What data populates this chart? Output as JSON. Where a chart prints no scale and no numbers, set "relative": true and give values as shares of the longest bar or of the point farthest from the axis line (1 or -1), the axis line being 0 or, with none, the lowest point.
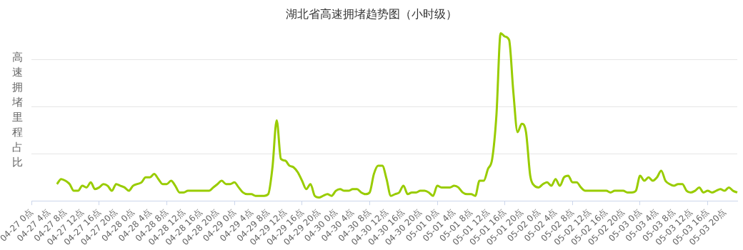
{
  "chart_data": {
    "type": "line",
    "title": "湖北省高速拥堵趋势图（小时级）",
    "ylabel": "高速拥堵里程占比",
    "relative": true,
    "grid": "y",
    "legend": false,
    "marker": "none",
    "categories": [
      "04-27 0点",
      null,
      null,
      null,
      "04-27 4点",
      null,
      null,
      null,
      "04-27 8点",
      null,
      null,
      null,
      "04-27 12点",
      null,
      null,
      null,
      "04-27 16点",
      null,
      null,
      null,
      "04-27 20点",
      null,
      null,
      null,
      "04-28 0点",
      null,
      null,
      null,
      "04-28 4点",
      null,
      null,
      null,
      "04-28 8点",
      null,
      null,
      null,
      "04-28 12点",
      null,
      null,
      null,
      "04-28 16点",
      null,
      null,
      null,
      "04-28 20点",
      null,
      null,
      null,
      "04-29 0点",
      null,
      null,
      null,
      "04-29 4点",
      null,
      null,
      null,
      "04-29 8点",
      null,
      null,
      null,
      "04-29 12点",
      null,
      null,
      null,
      "04-29 16点",
      null,
      null,
      null,
      "04-29 20点",
      null,
      null,
      null,
      "04-30 0点",
      null,
      null,
      null,
      "04-30 4点",
      null,
      null,
      null,
      "04-30 8点",
      null,
      null,
      null,
      "04-30 12点",
      null,
      null,
      null,
      "04-30 16点",
      null,
      null,
      null,
      "04-30 20点",
      null,
      null,
      null,
      "05-01 0点",
      null,
      null,
      null,
      "05-01 4点",
      null,
      null,
      null,
      "05-01 8点",
      null,
      null,
      null,
      "05-01 12点",
      null,
      null,
      null,
      "05-01 16点",
      null,
      null,
      null,
      "05-01 20点",
      null,
      null,
      null,
      "05-02 0点",
      null,
      null,
      null,
      "05-02 4点",
      null,
      null,
      null,
      "05-02 8点",
      null,
      null,
      null,
      "05-02 12点",
      null,
      null,
      null,
      "05-02 16点",
      null,
      null,
      null,
      "05-02 20点",
      null,
      null,
      null,
      "05-03 0点",
      null,
      null,
      null,
      "05-03 4点",
      null,
      null,
      null,
      "05-03 8点",
      null,
      null,
      null,
      "05-03 12点",
      null,
      null,
      null,
      "05-03 16点",
      null,
      null,
      null,
      "05-03 20点",
      null,
      null,
      null
    ],
    "series": [
      {
        "color": "#99cc00",
        "values": [
          null,
          null,
          null,
          null,
          null,
          null,
          0.1,
          0.13,
          0.12,
          0.1,
          0.06,
          0.06,
          0.09,
          0.08,
          0.11,
          0.07,
          0.08,
          0.1,
          0.09,
          0.06,
          0.1,
          0.09,
          0.08,
          0.06,
          0.09,
          0.1,
          0.11,
          0.14,
          0.14,
          0.16,
          0.13,
          0.1,
          0.1,
          0.12,
          0.09,
          0.05,
          0.05,
          0.06,
          0.06,
          0.06,
          0.06,
          0.06,
          0.06,
          0.08,
          0.1,
          0.12,
          0.1,
          0.1,
          0.11,
          0.08,
          0.05,
          0.04,
          0.04,
          0.03,
          0.03,
          0.03,
          0.04,
          0.2,
          0.48,
          0.25,
          0.24,
          0.21,
          0.2,
          0.17,
          0.12,
          0.07,
          0.1,
          0.03,
          0.02,
          0.03,
          0.04,
          0.03,
          0.06,
          0.07,
          0.06,
          0.06,
          0.07,
          0.07,
          0.05,
          0.04,
          0.05,
          0.16,
          0.21,
          0.21,
          0.13,
          0.03,
          0.04,
          0.05,
          0.09,
          0.04,
          0.05,
          0.05,
          0.06,
          0.06,
          0.05,
          0.03,
          0.09,
          0.08,
          0.08,
          0.08,
          0.09,
          0.08,
          0.05,
          0.04,
          0.04,
          0.03,
          0.12,
          0.12,
          0.19,
          0.25,
          0.51,
          1,
          0.98,
          0.96,
          0.65,
          0.41,
          0.46,
          0.41,
          0.15,
          0.09,
          0.08,
          0.1,
          0.11,
          0.09,
          0.13,
          0.09,
          0.14,
          0.15,
          0.11,
          0.11,
          0.08,
          0.06,
          0.06,
          0.06,
          0.06,
          0.06,
          0.06,
          0.05,
          0.06,
          0.06,
          0.06,
          0.05,
          0.05,
          0.06,
          0.15,
          0.12,
          0.14,
          0.12,
          0.14,
          0.18,
          0.12,
          0.1,
          0.09,
          0.1,
          0.1,
          0.06,
          0.05,
          0.06,
          0.08,
          0.05,
          0.06,
          0.05,
          0.06,
          0.07,
          0.06,
          0.08,
          0.06,
          0.05
        ]
      }
    ]
  }
}
